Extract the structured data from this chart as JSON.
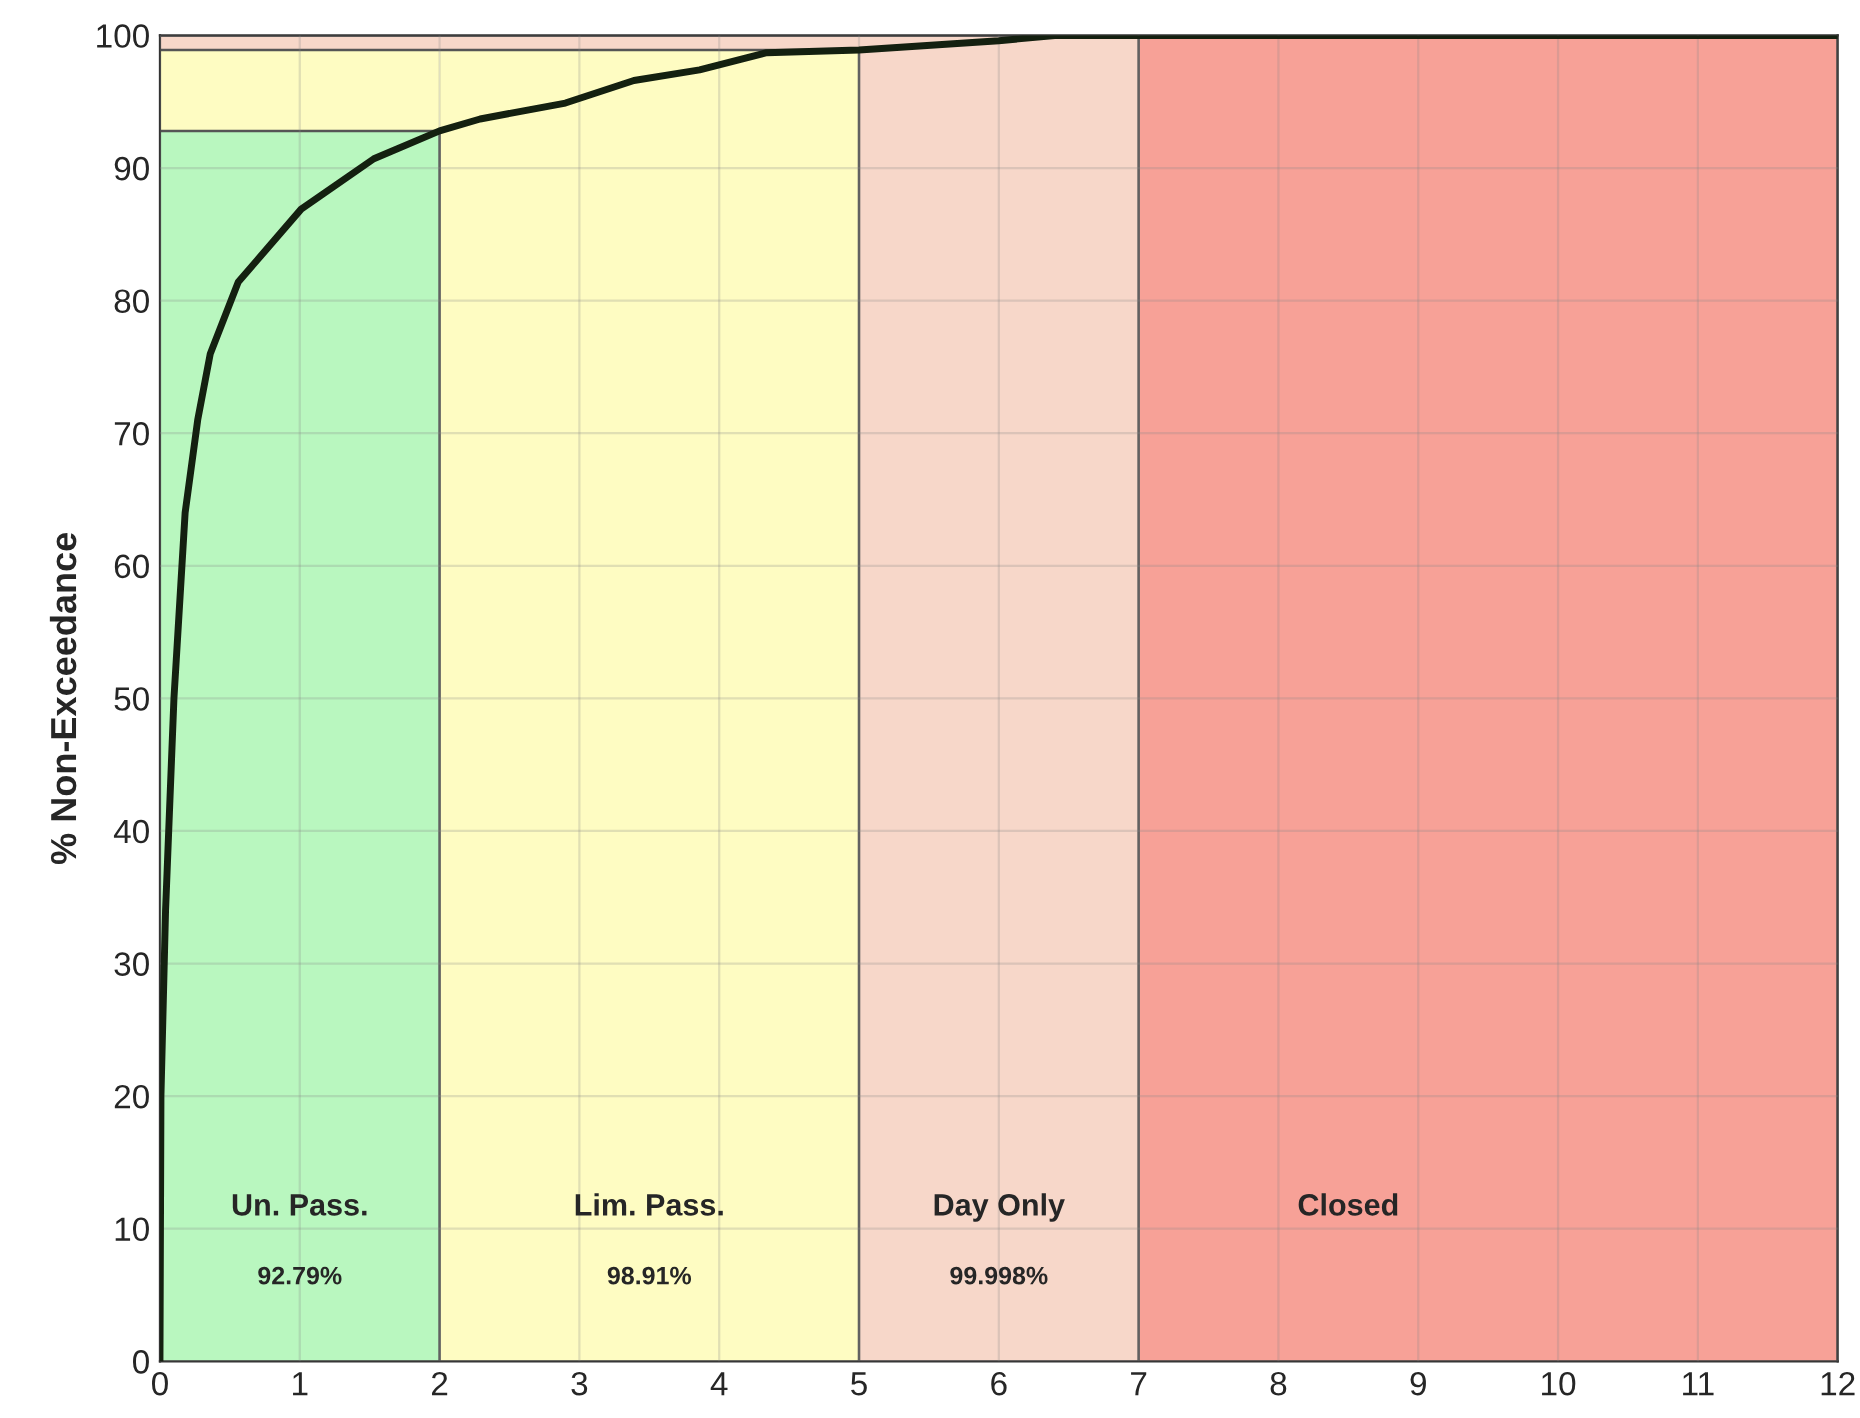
{
  "chart_data": {
    "type": "line",
    "ylabel": "% Non-Exceedance",
    "x": [
      0,
      0.007,
      0.04,
      0.1,
      0.18,
      0.27,
      0.36,
      0.56,
      1.01,
      1.53,
      2.0,
      2.29,
      2.9,
      3.39,
      3.86,
      4.34,
      5.0,
      6.0,
      6.4,
      12
    ],
    "series": [
      {
        "color": "#142010",
        "values": [
          0,
          20,
          34,
          50,
          64,
          71,
          76,
          81.4,
          86.9,
          90.7,
          92.8,
          93.7,
          94.9,
          96.6,
          97.4,
          98.7,
          98.9,
          99.6,
          100,
          100
        ]
      }
    ],
    "xlim": [
      0,
      12
    ],
    "ylim": [
      0,
      100
    ],
    "xticks": [
      0,
      1,
      2,
      3,
      4,
      5,
      6,
      7,
      8,
      9,
      10,
      11,
      12
    ],
    "yticks": [
      0,
      10,
      20,
      30,
      40,
      50,
      60,
      70,
      80,
      90,
      100
    ],
    "grid": true,
    "line_style": "solid",
    "marker": "none",
    "bands": [
      {
        "axis": "x",
        "from": 0,
        "to": 2,
        "label": "Un. Pass.",
        "color": "#b9f7bf"
      },
      {
        "axis": "x",
        "from": 2,
        "to": 5,
        "label": "Lim. Pass.",
        "color": "#fefcc2"
      },
      {
        "axis": "x",
        "from": 5,
        "to": 7,
        "label": "Day Only",
        "color": "#f7d7c9"
      },
      {
        "axis": "x",
        "from": 7,
        "to": 12,
        "label": "Closed",
        "color": "#f7a197"
      },
      {
        "axis": "y",
        "from": 92.79,
        "to": 98.91,
        "color": "#fefcc2"
      },
      {
        "axis": "y",
        "from": 98.91,
        "to": 100,
        "color": "#f7d7c9"
      }
    ],
    "ref_lines": [
      {
        "axis": "y",
        "value": 92.79
      },
      {
        "axis": "y",
        "value": 98.91
      },
      {
        "axis": "y",
        "value": 99.998
      }
    ],
    "annotations": [
      "92.79%",
      "98.91%",
      "99.998%"
    ]
  }
}
